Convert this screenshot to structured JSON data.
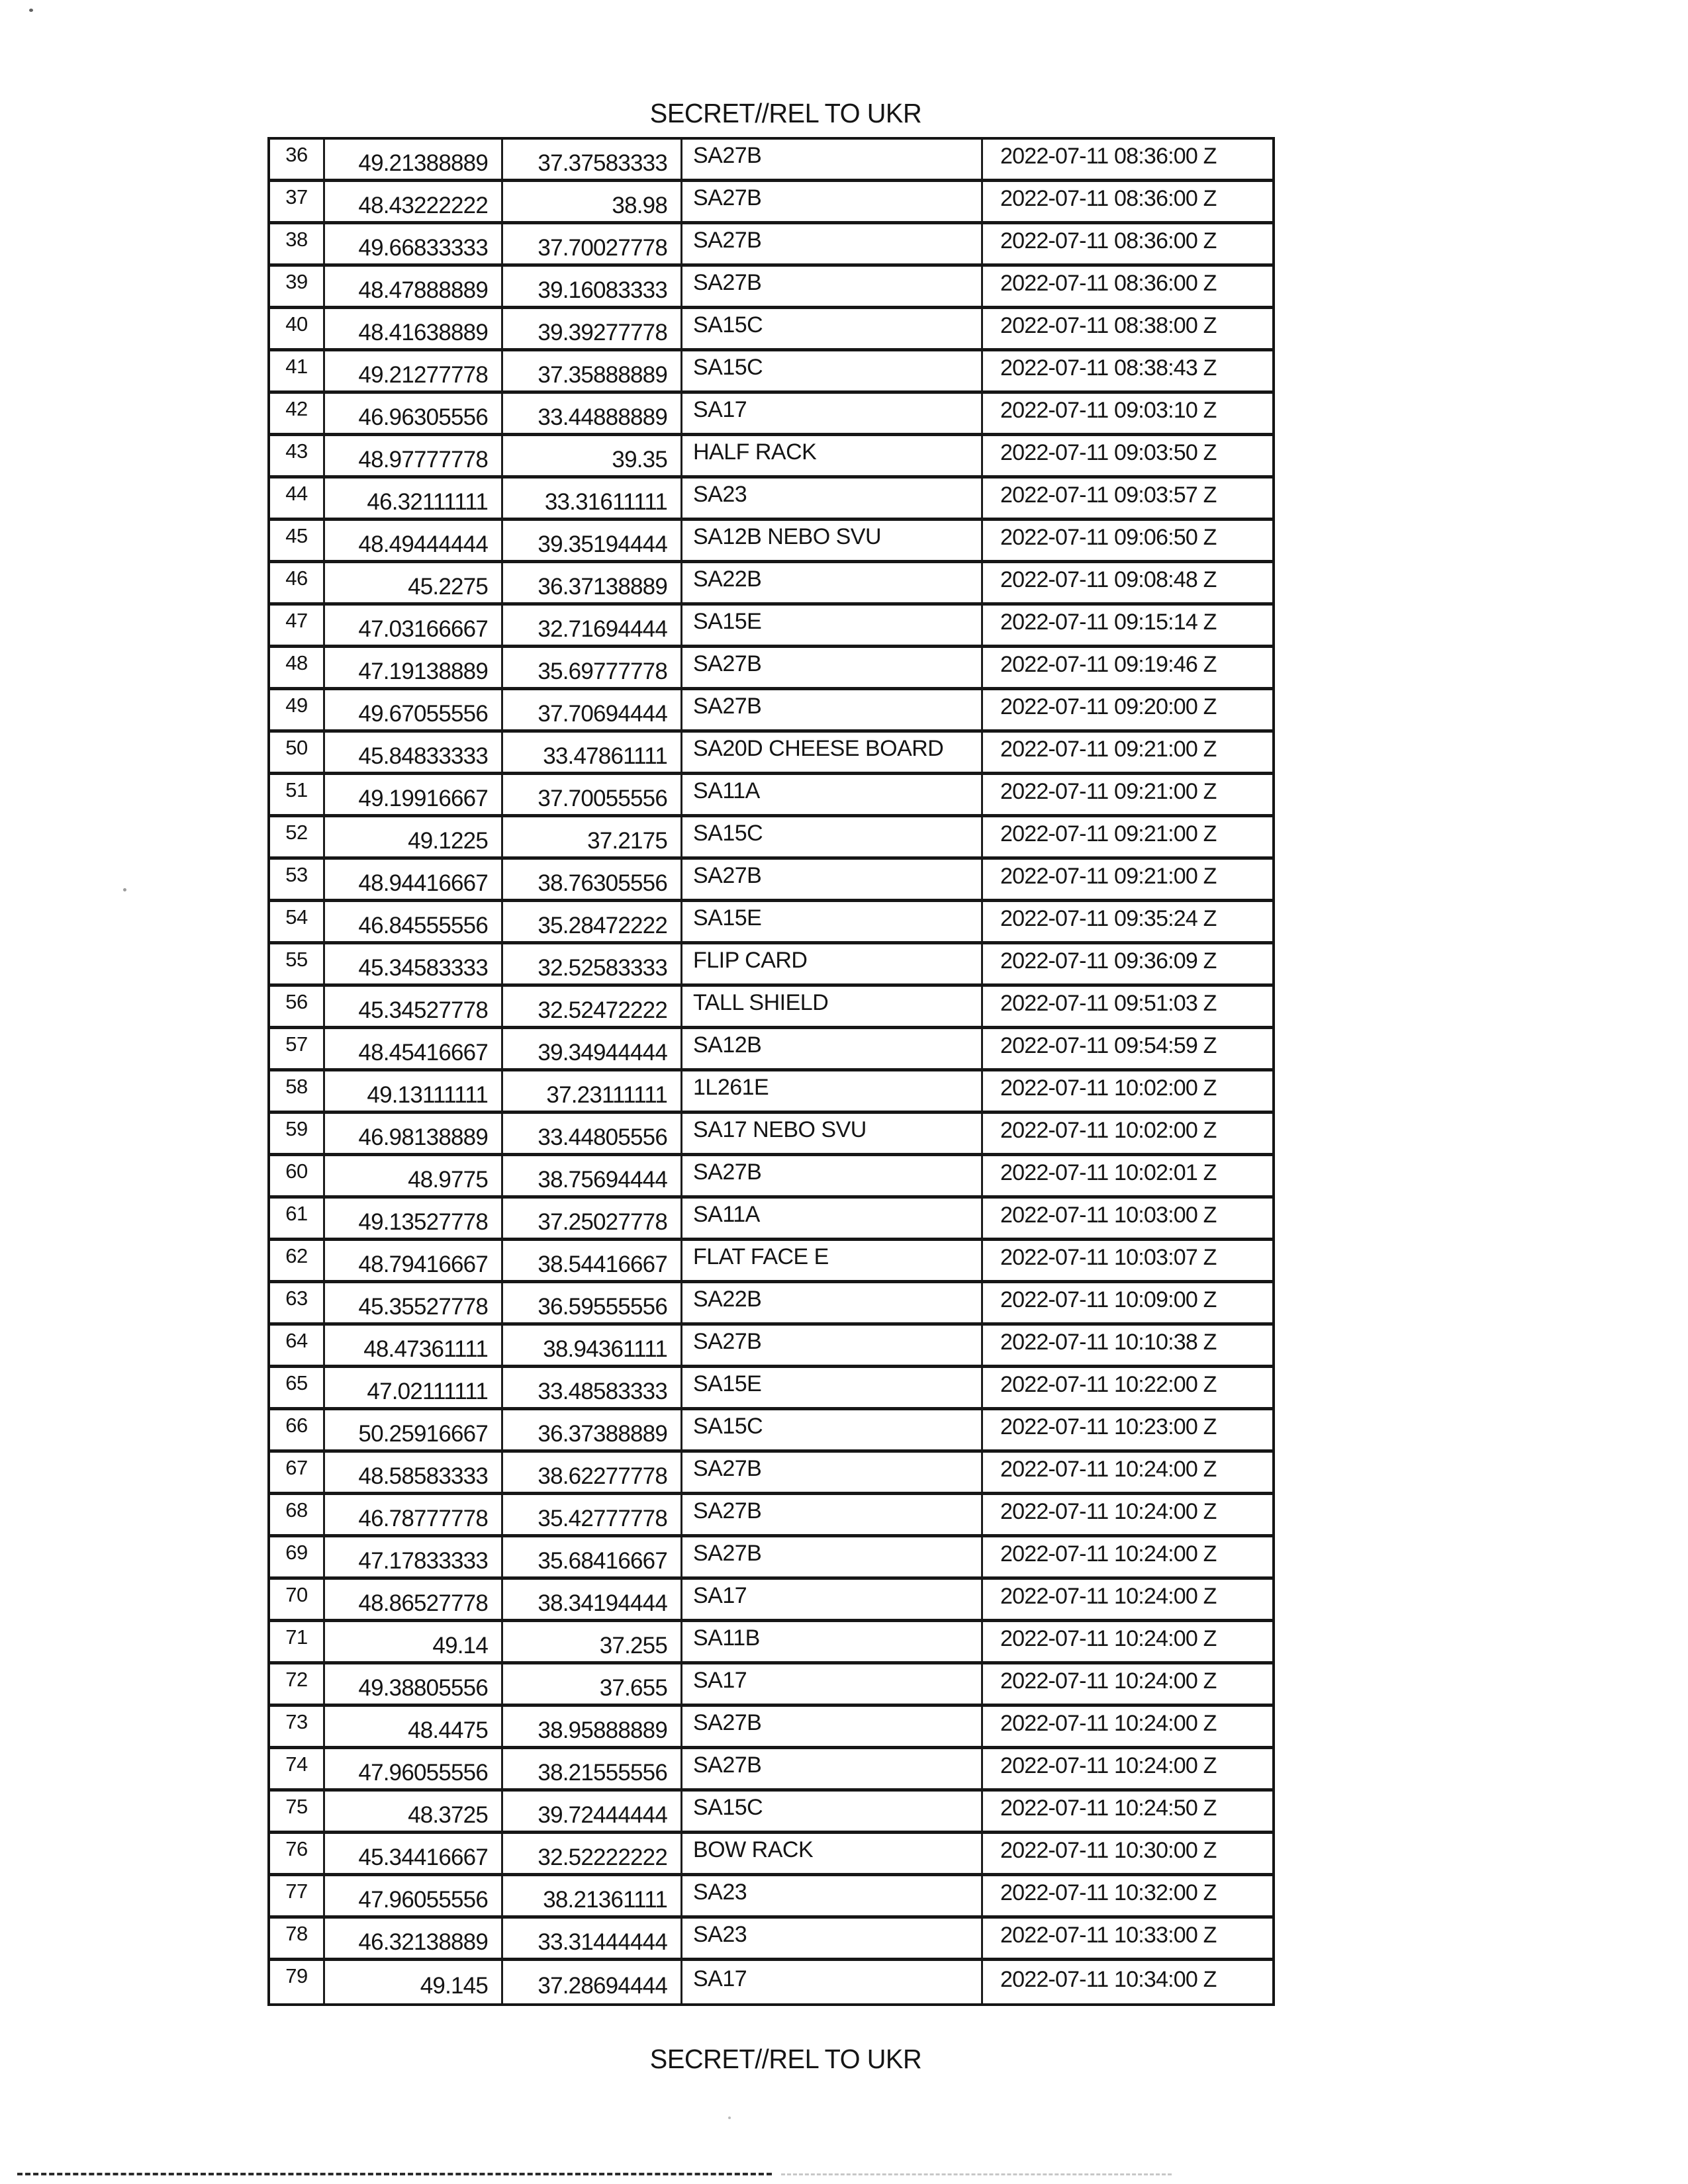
{
  "classification": {
    "top": "SECRET//REL TO UKR",
    "bottom": "SECRET//REL TO UKR"
  },
  "table": {
    "columns": [
      "row_number",
      "latitude",
      "longitude",
      "system",
      "timestamp"
    ],
    "rows": [
      {
        "num": "36",
        "lat": "49.21388889",
        "lon": "37.37583333",
        "system": "SA27B",
        "time": "2022-07-11 08:36:00 Z"
      },
      {
        "num": "37",
        "lat": "48.43222222",
        "lon": "38.98",
        "system": "SA27B",
        "time": "2022-07-11 08:36:00 Z"
      },
      {
        "num": "38",
        "lat": "49.66833333",
        "lon": "37.70027778",
        "system": "SA27B",
        "time": "2022-07-11 08:36:00 Z"
      },
      {
        "num": "39",
        "lat": "48.47888889",
        "lon": "39.16083333",
        "system": "SA27B",
        "time": "2022-07-11 08:36:00 Z"
      },
      {
        "num": "40",
        "lat": "48.41638889",
        "lon": "39.39277778",
        "system": "SA15C",
        "time": "2022-07-11 08:38:00 Z"
      },
      {
        "num": "41",
        "lat": "49.21277778",
        "lon": "37.35888889",
        "system": "SA15C",
        "time": "2022-07-11 08:38:43 Z"
      },
      {
        "num": "42",
        "lat": "46.96305556",
        "lon": "33.44888889",
        "system": "SA17",
        "time": "2022-07-11 09:03:10 Z"
      },
      {
        "num": "43",
        "lat": "48.97777778",
        "lon": "39.35",
        "system": "HALF RACK",
        "time": "2022-07-11 09:03:50 Z"
      },
      {
        "num": "44",
        "lat": "46.32111111",
        "lon": "33.31611111",
        "system": "SA23",
        "time": "2022-07-11 09:03:57 Z"
      },
      {
        "num": "45",
        "lat": "48.49444444",
        "lon": "39.35194444",
        "system": "SA12B NEBO SVU",
        "time": "2022-07-11 09:06:50 Z"
      },
      {
        "num": "46",
        "lat": "45.2275",
        "lon": "36.37138889",
        "system": "SA22B",
        "time": "2022-07-11 09:08:48 Z"
      },
      {
        "num": "47",
        "lat": "47.03166667",
        "lon": "32.71694444",
        "system": "SA15E",
        "time": "2022-07-11 09:15:14 Z"
      },
      {
        "num": "48",
        "lat": "47.19138889",
        "lon": "35.69777778",
        "system": "SA27B",
        "time": "2022-07-11 09:19:46 Z"
      },
      {
        "num": "49",
        "lat": "49.67055556",
        "lon": "37.70694444",
        "system": "SA27B",
        "time": "2022-07-11 09:20:00 Z"
      },
      {
        "num": "50",
        "lat": "45.84833333",
        "lon": "33.47861111",
        "system": "SA20D CHEESE BOARD",
        "time": "2022-07-11 09:21:00 Z"
      },
      {
        "num": "51",
        "lat": "49.19916667",
        "lon": "37.70055556",
        "system": "SA11A",
        "time": "2022-07-11 09:21:00 Z"
      },
      {
        "num": "52",
        "lat": "49.1225",
        "lon": "37.2175",
        "system": "SA15C",
        "time": "2022-07-11 09:21:00 Z"
      },
      {
        "num": "53",
        "lat": "48.94416667",
        "lon": "38.76305556",
        "system": "SA27B",
        "time": "2022-07-11 09:21:00 Z"
      },
      {
        "num": "54",
        "lat": "46.84555556",
        "lon": "35.28472222",
        "system": "SA15E",
        "time": "2022-07-11 09:35:24 Z"
      },
      {
        "num": "55",
        "lat": "45.34583333",
        "lon": "32.52583333",
        "system": "FLIP CARD",
        "time": "2022-07-11 09:36:09 Z"
      },
      {
        "num": "56",
        "lat": "45.34527778",
        "lon": "32.52472222",
        "system": "TALL SHIELD",
        "time": "2022-07-11 09:51:03 Z"
      },
      {
        "num": "57",
        "lat": "48.45416667",
        "lon": "39.34944444",
        "system": "SA12B",
        "time": "2022-07-11 09:54:59 Z"
      },
      {
        "num": "58",
        "lat": "49.13111111",
        "lon": "37.23111111",
        "system": "1L261E",
        "time": "2022-07-11 10:02:00 Z"
      },
      {
        "num": "59",
        "lat": "46.98138889",
        "lon": "33.44805556",
        "system": "SA17 NEBO SVU",
        "time": "2022-07-11 10:02:00 Z"
      },
      {
        "num": "60",
        "lat": "48.9775",
        "lon": "38.75694444",
        "system": "SA27B",
        "time": "2022-07-11 10:02:01 Z"
      },
      {
        "num": "61",
        "lat": "49.13527778",
        "lon": "37.25027778",
        "system": "SA11A",
        "time": "2022-07-11 10:03:00 Z"
      },
      {
        "num": "62",
        "lat": "48.79416667",
        "lon": "38.54416667",
        "system": "FLAT FACE E",
        "time": "2022-07-11 10:03:07 Z"
      },
      {
        "num": "63",
        "lat": "45.35527778",
        "lon": "36.59555556",
        "system": "SA22B",
        "time": "2022-07-11 10:09:00 Z"
      },
      {
        "num": "64",
        "lat": "48.47361111",
        "lon": "38.94361111",
        "system": "SA27B",
        "time": "2022-07-11 10:10:38 Z"
      },
      {
        "num": "65",
        "lat": "47.02111111",
        "lon": "33.48583333",
        "system": "SA15E",
        "time": "2022-07-11 10:22:00 Z"
      },
      {
        "num": "66",
        "lat": "50.25916667",
        "lon": "36.37388889",
        "system": "SA15C",
        "time": "2022-07-11 10:23:00 Z"
      },
      {
        "num": "67",
        "lat": "48.58583333",
        "lon": "38.62277778",
        "system": "SA27B",
        "time": "2022-07-11 10:24:00 Z"
      },
      {
        "num": "68",
        "lat": "46.78777778",
        "lon": "35.42777778",
        "system": "SA27B",
        "time": "2022-07-11 10:24:00 Z"
      },
      {
        "num": "69",
        "lat": "47.17833333",
        "lon": "35.68416667",
        "system": "SA27B",
        "time": "2022-07-11 10:24:00 Z"
      },
      {
        "num": "70",
        "lat": "48.86527778",
        "lon": "38.34194444",
        "system": "SA17",
        "time": "2022-07-11 10:24:00 Z"
      },
      {
        "num": "71",
        "lat": "49.14",
        "lon": "37.255",
        "system": "SA11B",
        "time": "2022-07-11 10:24:00 Z"
      },
      {
        "num": "72",
        "lat": "49.38805556",
        "lon": "37.655",
        "system": "SA17",
        "time": "2022-07-11 10:24:00 Z"
      },
      {
        "num": "73",
        "lat": "48.4475",
        "lon": "38.95888889",
        "system": "SA27B",
        "time": "2022-07-11 10:24:00 Z"
      },
      {
        "num": "74",
        "lat": "47.96055556",
        "lon": "38.21555556",
        "system": "SA27B",
        "time": "2022-07-11 10:24:00 Z"
      },
      {
        "num": "75",
        "lat": "48.3725",
        "lon": "39.72444444",
        "system": "SA15C",
        "time": "2022-07-11 10:24:50 Z"
      },
      {
        "num": "76",
        "lat": "45.34416667",
        "lon": "32.52222222",
        "system": "BOW RACK",
        "time": "2022-07-11 10:30:00 Z"
      },
      {
        "num": "77",
        "lat": "47.96055556",
        "lon": "38.21361111",
        "system": "SA23",
        "time": "2022-07-11 10:32:00 Z"
      },
      {
        "num": "78",
        "lat": "46.32138889",
        "lon": "33.31444444",
        "system": "SA23",
        "time": "2022-07-11 10:33:00 Z"
      },
      {
        "num": "79",
        "lat": "49.145",
        "lon": "37.28694444",
        "system": "SA17",
        "time": "2022-07-11 10:34:00 Z"
      }
    ]
  }
}
